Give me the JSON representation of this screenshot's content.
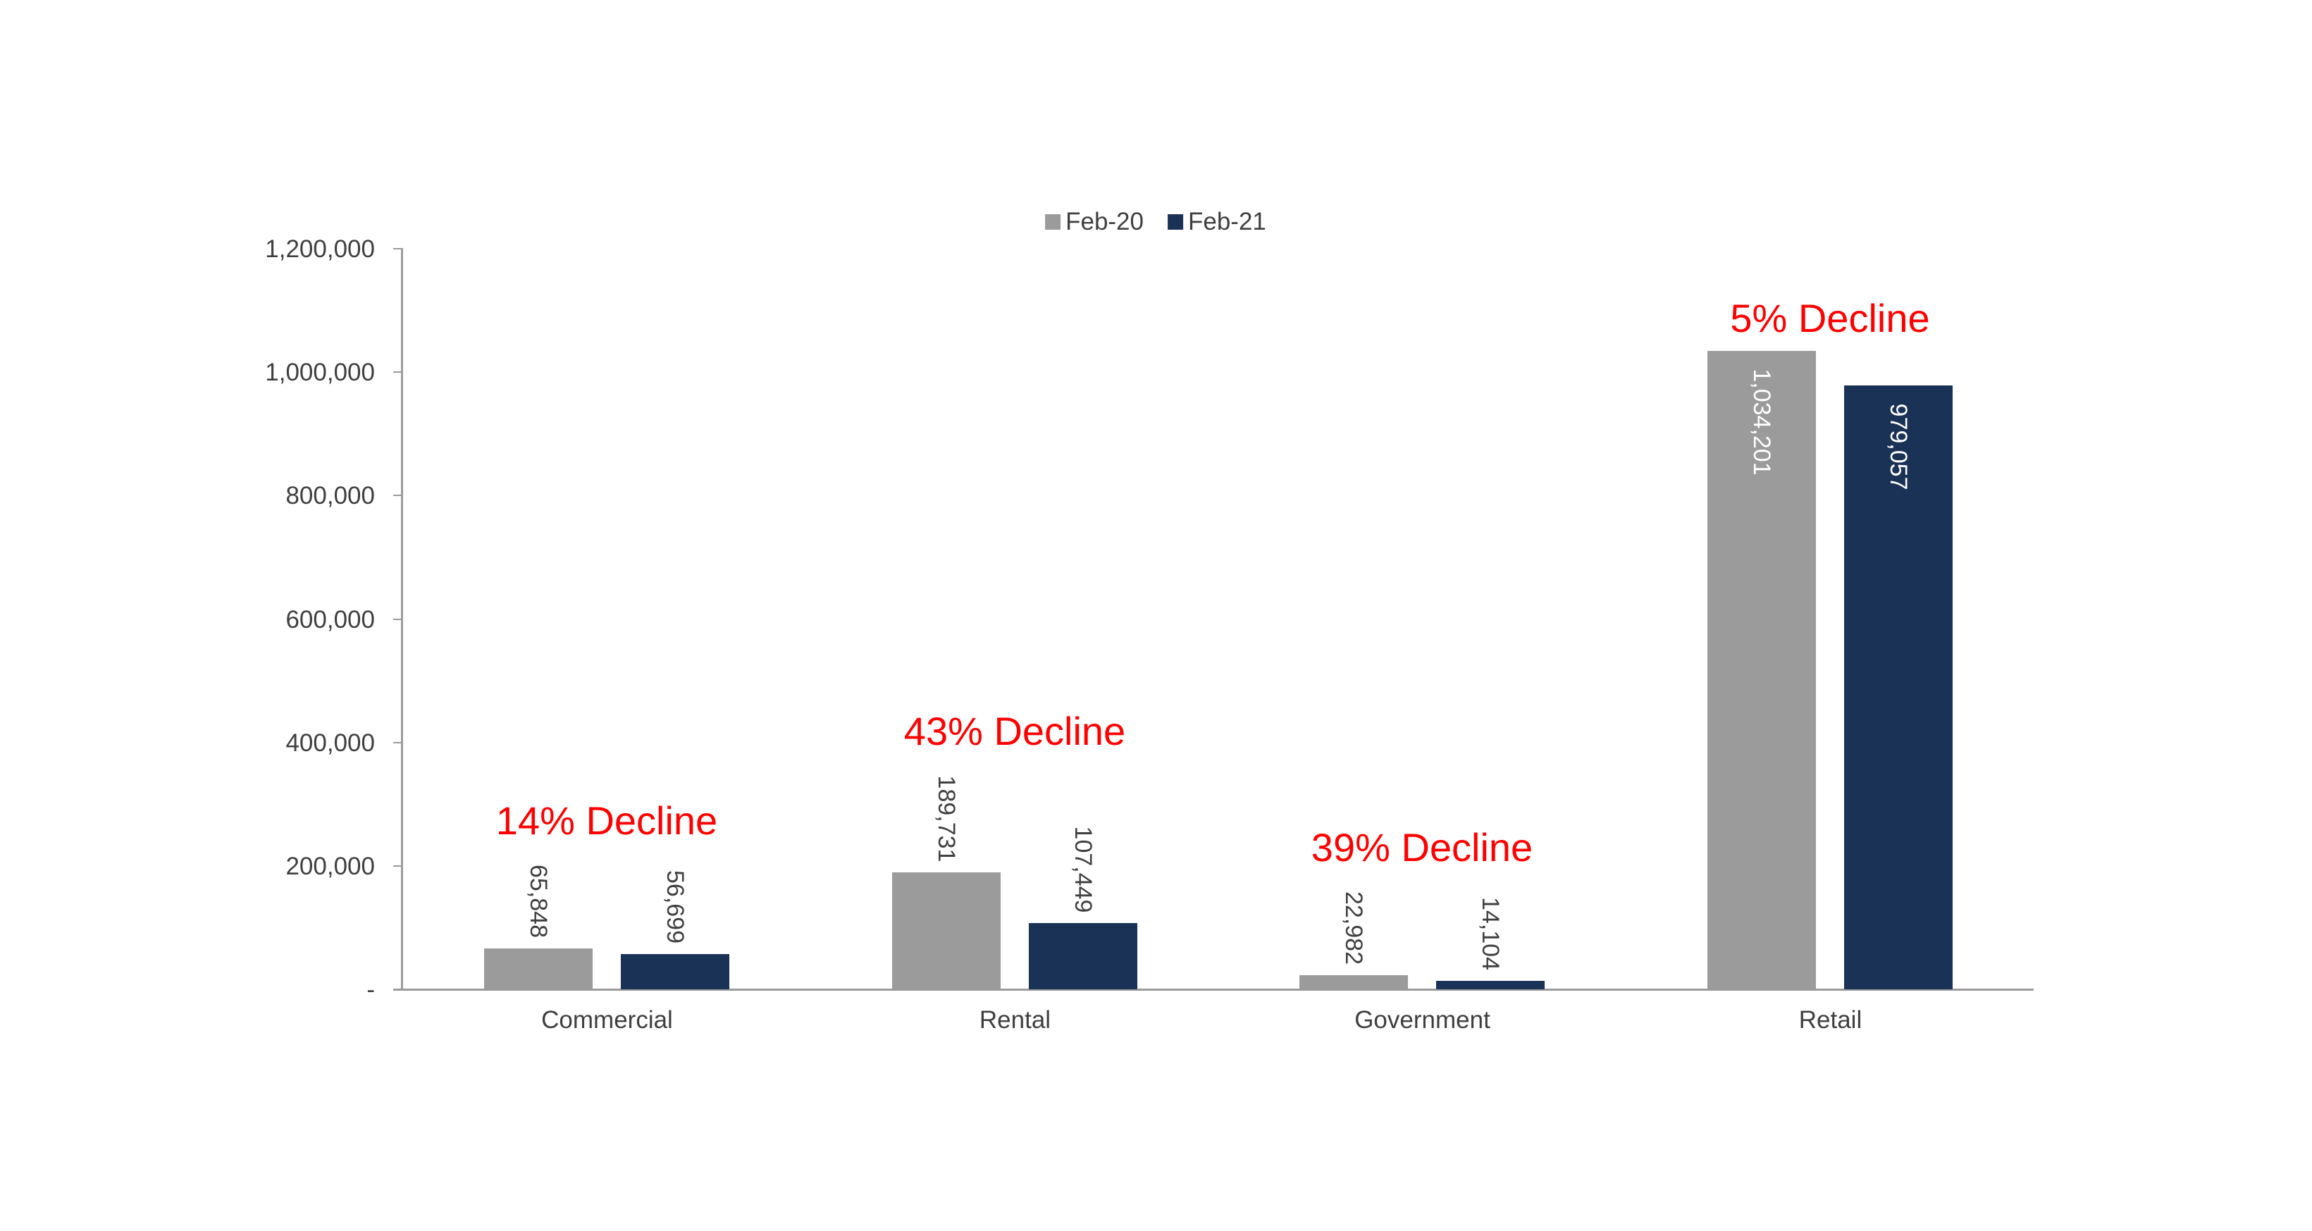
{
  "chart_data": {
    "type": "bar",
    "title": "",
    "categories": [
      "Commercial",
      "Rental",
      "Government",
      "Retail"
    ],
    "series": [
      {
        "name": "Feb-20",
        "color": "#9B9B9B",
        "values": [
          65848,
          189731,
          22982,
          1034201
        ],
        "labels": [
          "65,848",
          "189,731",
          "22,982",
          "1,034,201"
        ]
      },
      {
        "name": "Feb-21",
        "color": "#1B3257",
        "values": [
          56699,
          107449,
          14104,
          979057
        ],
        "labels": [
          "56,699",
          "107,449",
          "14,104",
          "979,057"
        ]
      }
    ],
    "annotations": [
      {
        "category": "Commercial",
        "text": "14% Decline"
      },
      {
        "category": "Rental",
        "text": "43% Decline"
      },
      {
        "category": "Government",
        "text": "39% Decline"
      },
      {
        "category": "Retail",
        "text": "5% Decline"
      }
    ],
    "annotation_color": "#FF0000",
    "y_axis": {
      "min": 0,
      "max": 1200000,
      "tick_interval": 200000,
      "tick_labels": [
        "-",
        "200,000",
        "400,000",
        "600,000",
        "800,000",
        "1,000,000",
        "1,200,000"
      ]
    },
    "legend_position": "top-center",
    "grid": false,
    "outside_label_color": "#3f3f3f",
    "inside_label_color": "#ffffff",
    "axis_color": "#9b9b9b"
  }
}
